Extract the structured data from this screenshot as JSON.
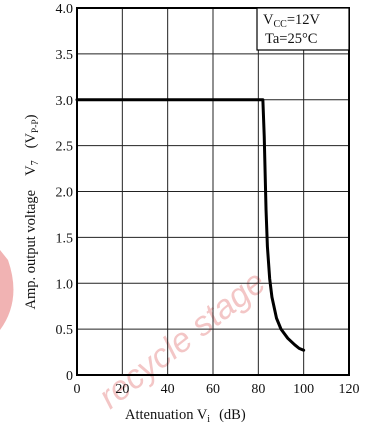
{
  "chart_data": {
    "type": "line",
    "xlabel": "Attenuation  V",
    "xlabel_sub": "i",
    "xlabel_unit": "(dB)",
    "ylabel": "Amp. output voltage",
    "ylabel_symbol": "V",
    "ylabel_symbol_sub": "7",
    "ylabel_unit_open": "(V",
    "ylabel_unit_sub": "P-P",
    "ylabel_unit_close": ")",
    "xlim": [
      0,
      120
    ],
    "ylim": [
      0,
      4.0
    ],
    "x_ticks": [
      "0",
      "20",
      "40",
      "60",
      "80",
      "100",
      "120"
    ],
    "y_ticks": [
      "0",
      "0.5",
      "1.0",
      "1.5",
      "2.0",
      "2.5",
      "3.0",
      "3.5",
      "4.0"
    ],
    "grid": true,
    "conditions": [
      {
        "main": "V",
        "sub": "CC",
        "rest": "=12V"
      },
      {
        "main": "Ta=25°C",
        "sub": "",
        "rest": ""
      }
    ],
    "series": [
      {
        "x": [
          0,
          80,
          82,
          82.6,
          83,
          83.4,
          84,
          85,
          86,
          88,
          90,
          93,
          96,
          98,
          100
        ],
        "y": [
          3.0,
          3.0,
          3.0,
          2.6,
          2.2,
          1.8,
          1.4,
          1.05,
          0.85,
          0.62,
          0.5,
          0.4,
          0.33,
          0.29,
          0.27
        ],
        "color": "#000000"
      }
    ]
  },
  "watermark": {
    "text": "recycle stage",
    "color": "#f3c6c6"
  }
}
